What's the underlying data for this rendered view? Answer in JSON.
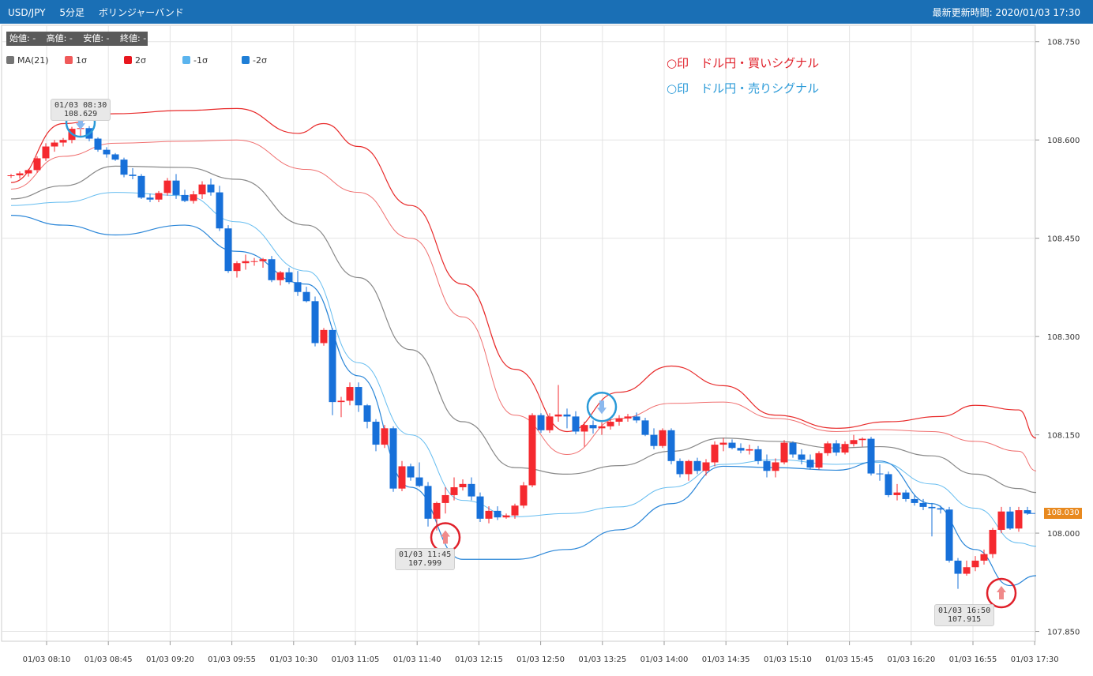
{
  "header": {
    "symbol": "USD/JPY",
    "timeframe": "5分足",
    "indicator": "ボリンジャーバンド",
    "updated_label": "最新更新時間: 2020/01/03 17:30"
  },
  "ohlc_box": {
    "open": "始値: -",
    "high": "高値: -",
    "low": "安値: -",
    "close": "終値: -"
  },
  "legend": [
    {
      "label": "MA(21)",
      "color": "#757575"
    },
    {
      "label": "1σ",
      "color": "#f05a5a"
    },
    {
      "label": "2σ",
      "color": "#e8161e"
    },
    {
      "label": "-1σ",
      "color": "#5bb4ee"
    },
    {
      "label": "-2σ",
      "color": "#1f7ed6"
    }
  ],
  "signals_legend": {
    "buy": {
      "text": "○印　ドル円・買いシグナル",
      "color": "#e0202a"
    },
    "sell": {
      "text": "○印　ドル円・売りシグナル",
      "color": "#2a9ad8"
    }
  },
  "tooltips": [
    {
      "time": "01/03 08:30",
      "price": "108.629"
    },
    {
      "time": "01/03 11:45",
      "price": "107.999"
    },
    {
      "time": "01/03 16:50",
      "price": "107.915"
    }
  ],
  "last_price": "108.030",
  "colors": {
    "up": "#f5292f",
    "down": "#1770d9",
    "grid": "#e4e4e4"
  },
  "chart_data": {
    "type": "candlestick",
    "ylim": [
      107.835,
      108.775
    ],
    "y_ticks": [
      107.85,
      108.0,
      108.15,
      108.3,
      108.45,
      108.6,
      108.75
    ],
    "y_tick_labels": [
      "107.850",
      "108.000",
      "108.150",
      "108.300",
      "108.450",
      "108.600",
      "108.750"
    ],
    "x_tick_labels": [
      "01/03 08:10",
      "01/03 08:45",
      "01/03 09:20",
      "01/03 09:55",
      "01/03 10:30",
      "01/03 11:05",
      "01/03 11:40",
      "01/03 12:15",
      "01/03 12:50",
      "01/03 13:25",
      "01/03 14:00",
      "01/03 14:35",
      "01/03 15:10",
      "01/03 15:45",
      "01/03 16:20",
      "01/03 16:55",
      "01/03 17:30"
    ],
    "x_tick_every": 7,
    "candles": [
      [
        108.545,
        108.548,
        108.542,
        108.546
      ],
      [
        108.546,
        108.552,
        108.541,
        108.549
      ],
      [
        108.549,
        108.556,
        108.544,
        108.554
      ],
      [
        108.554,
        108.575,
        108.55,
        108.572
      ],
      [
        108.572,
        108.595,
        108.568,
        108.59
      ],
      [
        108.59,
        108.6,
        108.582,
        108.596
      ],
      [
        108.596,
        108.603,
        108.59,
        108.6
      ],
      [
        108.6,
        108.62,
        108.595,
        108.617
      ],
      [
        108.617,
        108.629,
        108.605,
        108.618
      ],
      [
        108.618,
        108.621,
        108.598,
        108.602
      ],
      [
        108.602,
        108.604,
        108.582,
        108.585
      ],
      [
        108.585,
        108.589,
        108.573,
        108.578
      ],
      [
        108.578,
        108.58,
        108.568,
        108.57
      ],
      [
        108.57,
        108.573,
        108.543,
        108.547
      ],
      [
        108.547,
        108.557,
        108.54,
        108.545
      ],
      [
        108.545,
        108.548,
        108.51,
        108.512
      ],
      [
        108.512,
        108.518,
        108.505,
        108.509
      ],
      [
        108.509,
        108.522,
        108.505,
        108.519
      ],
      [
        108.519,
        108.542,
        108.515,
        108.538
      ],
      [
        108.538,
        108.548,
        108.51,
        108.516
      ],
      [
        108.516,
        108.524,
        108.505,
        108.507
      ],
      [
        108.507,
        108.522,
        108.503,
        108.517
      ],
      [
        108.517,
        108.537,
        108.51,
        108.532
      ],
      [
        108.532,
        108.541,
        108.515,
        108.52
      ],
      [
        108.52,
        108.53,
        108.461,
        108.465
      ],
      [
        108.465,
        108.47,
        108.397,
        108.4
      ],
      [
        108.4,
        108.415,
        108.39,
        108.412
      ],
      [
        108.412,
        108.425,
        108.402,
        108.415
      ],
      [
        108.415,
        108.42,
        108.408,
        108.415
      ],
      [
        108.415,
        108.42,
        108.405,
        108.418
      ],
      [
        108.418,
        108.423,
        108.383,
        108.386
      ],
      [
        108.386,
        108.4,
        108.378,
        108.398
      ],
      [
        108.398,
        108.405,
        108.38,
        108.383
      ],
      [
        108.383,
        108.4,
        108.362,
        108.368
      ],
      [
        108.368,
        108.376,
        108.352,
        108.354
      ],
      [
        108.354,
        108.361,
        108.285,
        108.29
      ],
      [
        108.29,
        108.313,
        108.286,
        108.31
      ],
      [
        108.31,
        108.313,
        108.18,
        108.2
      ],
      [
        108.2,
        108.208,
        108.177,
        108.202
      ],
      [
        108.202,
        108.23,
        108.195,
        108.223
      ],
      [
        108.223,
        108.23,
        108.185,
        108.195
      ],
      [
        108.195,
        108.197,
        108.16,
        108.17
      ],
      [
        108.17,
        108.174,
        108.125,
        108.135
      ],
      [
        108.135,
        108.165,
        108.13,
        108.16
      ],
      [
        108.16,
        108.163,
        108.063,
        108.068
      ],
      [
        108.068,
        108.11,
        108.064,
        108.102
      ],
      [
        108.102,
        108.106,
        108.08,
        108.085
      ],
      [
        108.085,
        108.108,
        108.07,
        108.072
      ],
      [
        108.072,
        108.078,
        108.01,
        108.022
      ],
      [
        108.022,
        108.048,
        108.004,
        108.046
      ],
      [
        108.046,
        108.07,
        108.03,
        108.058
      ],
      [
        108.058,
        108.085,
        108.05,
        108.07
      ],
      [
        108.07,
        108.082,
        108.065,
        108.075
      ],
      [
        108.075,
        108.085,
        108.05,
        108.056
      ],
      [
        108.056,
        108.062,
        108.017,
        108.022
      ],
      [
        108.022,
        108.041,
        108.015,
        108.034
      ],
      [
        108.034,
        108.041,
        108.02,
        108.024
      ],
      [
        108.024,
        108.03,
        108.022,
        108.027
      ],
      [
        108.027,
        108.045,
        108.022,
        108.042
      ],
      [
        108.042,
        108.078,
        108.038,
        108.073
      ],
      [
        108.073,
        108.183,
        108.07,
        108.18
      ],
      [
        108.18,
        108.183,
        108.153,
        108.157
      ],
      [
        108.157,
        108.183,
        108.153,
        108.178
      ],
      [
        108.178,
        108.226,
        108.17,
        108.181
      ],
      [
        108.181,
        108.19,
        108.16,
        108.178
      ],
      [
        108.178,
        108.186,
        108.151,
        108.155
      ],
      [
        108.155,
        108.17,
        108.132,
        108.165
      ],
      [
        108.165,
        108.172,
        108.152,
        108.16
      ],
      [
        108.16,
        108.169,
        108.15,
        108.163
      ],
      [
        108.163,
        108.175,
        108.158,
        108.17
      ],
      [
        108.17,
        108.18,
        108.164,
        108.175
      ],
      [
        108.175,
        108.182,
        108.17,
        108.178
      ],
      [
        108.178,
        108.184,
        108.168,
        108.172
      ],
      [
        108.172,
        108.176,
        108.148,
        108.15
      ],
      [
        108.15,
        108.16,
        108.128,
        108.133
      ],
      [
        108.133,
        108.16,
        108.13,
        108.157
      ],
      [
        108.157,
        108.16,
        108.105,
        108.11
      ],
      [
        108.11,
        108.114,
        108.085,
        108.09
      ],
      [
        108.09,
        108.112,
        108.08,
        108.11
      ],
      [
        108.11,
        108.115,
        108.09,
        108.095
      ],
      [
        108.095,
        108.113,
        108.088,
        108.108
      ],
      [
        108.108,
        108.14,
        108.102,
        108.135
      ],
      [
        108.135,
        108.145,
        108.125,
        108.138
      ],
      [
        108.138,
        108.143,
        108.128,
        108.13
      ],
      [
        108.13,
        108.137,
        108.122,
        108.126
      ],
      [
        108.126,
        108.135,
        108.12,
        108.128
      ],
      [
        108.128,
        108.133,
        108.105,
        108.11
      ],
      [
        108.11,
        108.12,
        108.085,
        108.095
      ],
      [
        108.095,
        108.114,
        108.085,
        108.108
      ],
      [
        108.108,
        108.142,
        108.105,
        108.138
      ],
      [
        108.138,
        108.14,
        108.115,
        108.12
      ],
      [
        108.12,
        108.128,
        108.105,
        108.112
      ],
      [
        108.112,
        108.12,
        108.097,
        108.1
      ],
      [
        108.1,
        108.125,
        108.097,
        108.122
      ],
      [
        108.122,
        108.14,
        108.118,
        108.137
      ],
      [
        108.137,
        108.142,
        108.118,
        108.123
      ],
      [
        108.123,
        108.14,
        108.12,
        108.136
      ],
      [
        108.136,
        108.15,
        108.132,
        108.142
      ],
      [
        108.142,
        108.146,
        108.132,
        108.144
      ],
      [
        108.144,
        108.147,
        108.088,
        108.091
      ],
      [
        108.091,
        108.105,
        108.08,
        108.09
      ],
      [
        108.09,
        108.094,
        108.055,
        108.058
      ],
      [
        108.058,
        108.075,
        108.05,
        108.062
      ],
      [
        108.062,
        108.066,
        108.048,
        108.052
      ],
      [
        108.052,
        108.058,
        108.042,
        108.046
      ],
      [
        108.046,
        108.052,
        108.035,
        108.04
      ],
      [
        108.04,
        108.046,
        107.995,
        108.038
      ],
      [
        108.038,
        108.042,
        108.03,
        108.036
      ],
      [
        108.036,
        108.04,
        107.955,
        107.958
      ],
      [
        107.958,
        107.962,
        107.915,
        107.938
      ],
      [
        107.938,
        107.958,
        107.935,
        107.948
      ],
      [
        107.948,
        107.965,
        107.942,
        107.958
      ],
      [
        107.958,
        107.975,
        107.952,
        107.968
      ],
      [
        107.968,
        108.008,
        107.962,
        108.005
      ],
      [
        108.005,
        108.04,
        108.0,
        108.033
      ],
      [
        108.033,
        108.04,
        108.005,
        108.007
      ],
      [
        108.007,
        108.04,
        108.002,
        108.035
      ],
      [
        108.035,
        108.04,
        108.028,
        108.03
      ]
    ],
    "bands": {
      "ma21": [
        [
          0,
          108.51
        ],
        [
          6,
          108.53
        ],
        [
          12,
          108.56
        ],
        [
          20,
          108.558
        ],
        [
          26,
          108.54
        ],
        [
          34,
          108.47
        ],
        [
          40,
          108.39
        ],
        [
          46,
          108.28
        ],
        [
          52,
          108.17
        ],
        [
          58,
          108.1
        ],
        [
          64,
          108.09
        ],
        [
          70,
          108.103
        ],
        [
          76,
          108.125
        ],
        [
          82,
          108.145
        ],
        [
          88,
          108.14
        ],
        [
          95,
          108.13
        ],
        [
          100,
          108.132
        ],
        [
          106,
          108.118
        ],
        [
          111,
          108.09
        ],
        [
          116,
          108.068
        ],
        [
          118,
          108.062
        ]
      ],
      "up1": [
        [
          0,
          108.525
        ],
        [
          6,
          108.575
        ],
        [
          12,
          108.595
        ],
        [
          20,
          108.598
        ],
        [
          26,
          108.6
        ],
        [
          34,
          108.555
        ],
        [
          40,
          108.52
        ],
        [
          46,
          108.45
        ],
        [
          52,
          108.33
        ],
        [
          58,
          108.18
        ],
        [
          64,
          108.12
        ],
        [
          70,
          108.175
        ],
        [
          76,
          108.198
        ],
        [
          82,
          108.2
        ],
        [
          88,
          108.175
        ],
        [
          95,
          108.155
        ],
        [
          100,
          108.158
        ],
        [
          106,
          108.155
        ],
        [
          111,
          108.14
        ],
        [
          116,
          108.125
        ],
        [
          118,
          108.095
        ]
      ],
      "up2": [
        [
          0,
          108.535
        ],
        [
          6,
          108.625
        ],
        [
          12,
          108.64
        ],
        [
          20,
          108.645
        ],
        [
          26,
          108.648
        ],
        [
          33,
          108.61
        ],
        [
          36,
          108.625
        ],
        [
          40,
          108.59
        ],
        [
          46,
          108.5
        ],
        [
          52,
          108.38
        ],
        [
          58,
          108.25
        ],
        [
          64,
          108.155
        ],
        [
          70,
          108.215
        ],
        [
          76,
          108.255
        ],
        [
          82,
          108.225
        ],
        [
          88,
          108.18
        ],
        [
          95,
          108.16
        ],
        [
          101,
          108.17
        ],
        [
          107,
          108.178
        ],
        [
          111,
          108.195
        ],
        [
          116,
          108.188
        ],
        [
          118,
          108.145
        ]
      ],
      "dn1": [
        [
          0,
          108.5
        ],
        [
          6,
          108.505
        ],
        [
          12,
          108.52
        ],
        [
          20,
          108.515
        ],
        [
          26,
          108.475
        ],
        [
          34,
          108.4
        ],
        [
          40,
          108.26
        ],
        [
          46,
          108.15
        ],
        [
          52,
          108.05
        ],
        [
          58,
          108.025
        ],
        [
          64,
          108.03
        ],
        [
          70,
          108.04
        ],
        [
          76,
          108.07
        ],
        [
          82,
          108.105
        ],
        [
          88,
          108.112
        ],
        [
          95,
          108.105
        ],
        [
          100,
          108.108
        ],
        [
          106,
          108.075
        ],
        [
          111,
          108.038
        ],
        [
          116,
          107.985
        ],
        [
          118,
          107.98
        ]
      ],
      "dn2": [
        [
          0,
          108.485
        ],
        [
          6,
          108.47
        ],
        [
          12,
          108.455
        ],
        [
          20,
          108.47
        ],
        [
          26,
          108.43
        ],
        [
          34,
          108.38
        ],
        [
          40,
          108.24
        ],
        [
          46,
          108.07
        ],
        [
          52,
          107.96
        ],
        [
          58,
          107.96
        ],
        [
          64,
          107.975
        ],
        [
          70,
          108.005
        ],
        [
          76,
          108.045
        ],
        [
          82,
          108.102
        ],
        [
          88,
          108.1
        ],
        [
          95,
          108.096
        ],
        [
          100,
          108.11
        ],
        [
          106,
          108.045
        ],
        [
          111,
          107.975
        ],
        [
          115,
          107.92
        ],
        [
          118,
          107.935
        ]
      ]
    },
    "signals": [
      {
        "type": "sell",
        "candle": 8,
        "price": 108.629
      },
      {
        "type": "buy",
        "candle": 50,
        "price": 108.02
      },
      {
        "type": "sell",
        "candle": 68,
        "price": 108.195
      },
      {
        "type": "buy",
        "candle": 114,
        "price": 107.935
      }
    ]
  }
}
